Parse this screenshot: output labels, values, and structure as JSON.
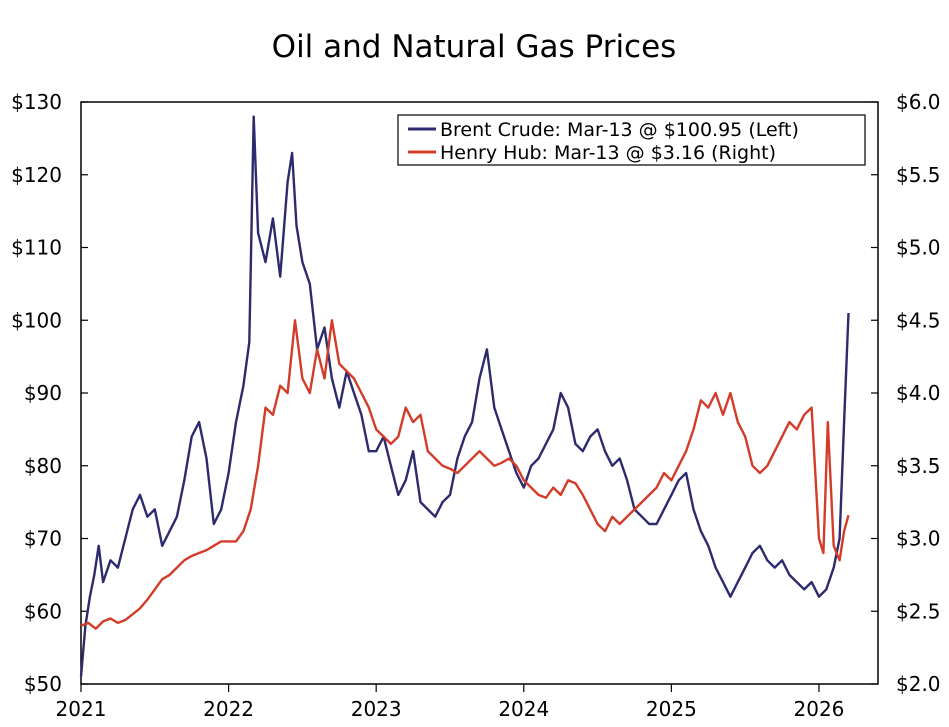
{
  "chart_data": {
    "type": "line",
    "title": "Oil and Natural Gas Prices",
    "xlabel": "",
    "ylabel_left": "",
    "ylabel_right": "",
    "x_ticks": [
      "2021",
      "2022",
      "2023",
      "2024",
      "2025",
      "2026"
    ],
    "x_range": [
      2021.0,
      2026.4
    ],
    "y_left": {
      "range": [
        50,
        130
      ],
      "ticks": [
        50,
        60,
        70,
        80,
        90,
        100,
        110,
        120,
        130
      ],
      "tick_labels": [
        "$50",
        "$60",
        "$70",
        "$80",
        "$90",
        "$100",
        "$110",
        "$120",
        "$130"
      ]
    },
    "y_right": {
      "range": [
        2.0,
        6.0
      ],
      "ticks": [
        2.0,
        2.5,
        3.0,
        3.5,
        4.0,
        4.5,
        5.0,
        5.5,
        6.0
      ],
      "tick_labels": [
        "$2.0",
        "$2.5",
        "$3.0",
        "$3.5",
        "$4.0",
        "$4.5",
        "$5.0",
        "$5.5",
        "$6.0"
      ]
    },
    "grid": false,
    "legend_position": "top-right",
    "series": [
      {
        "name": "Brent Crude",
        "legend_label": "Brent Crude: Mar-13 @ $100.95 (Left)",
        "axis": "left",
        "color": "#2e2a6e",
        "x": [
          2021.0,
          2021.03,
          2021.06,
          2021.09,
          2021.12,
          2021.15,
          2021.2,
          2021.25,
          2021.3,
          2021.35,
          2021.4,
          2021.45,
          2021.5,
          2021.55,
          2021.6,
          2021.65,
          2021.7,
          2021.75,
          2021.8,
          2021.85,
          2021.9,
          2021.95,
          2022.0,
          2022.05,
          2022.1,
          2022.14,
          2022.17,
          2022.2,
          2022.25,
          2022.3,
          2022.35,
          2022.4,
          2022.43,
          2022.46,
          2022.5,
          2022.55,
          2022.6,
          2022.65,
          2022.7,
          2022.75,
          2022.8,
          2022.85,
          2022.9,
          2022.95,
          2023.0,
          2023.05,
          2023.1,
          2023.15,
          2023.2,
          2023.25,
          2023.3,
          2023.35,
          2023.4,
          2023.45,
          2023.5,
          2023.55,
          2023.6,
          2023.65,
          2023.7,
          2023.75,
          2023.8,
          2023.85,
          2023.9,
          2023.95,
          2024.0,
          2024.05,
          2024.1,
          2024.15,
          2024.2,
          2024.25,
          2024.3,
          2024.35,
          2024.4,
          2024.45,
          2024.5,
          2024.55,
          2024.6,
          2024.65,
          2024.7,
          2024.75,
          2024.8,
          2024.85,
          2024.9,
          2024.95,
          2025.0,
          2025.05,
          2025.1,
          2025.15,
          2025.2,
          2025.25,
          2025.3,
          2025.35,
          2025.4,
          2025.45,
          2025.5,
          2025.55,
          2025.6,
          2025.65,
          2025.7,
          2025.75,
          2025.8,
          2025.85,
          2025.9,
          2025.95,
          2026.0,
          2026.05,
          2026.1,
          2026.14,
          2026.17,
          2026.2
        ],
        "y": [
          51,
          58,
          62,
          65,
          69,
          64,
          67,
          66,
          70,
          74,
          76,
          73,
          74,
          69,
          71,
          73,
          78,
          84,
          86,
          81,
          72,
          74,
          79,
          86,
          91,
          97,
          128,
          112,
          108,
          114,
          106,
          119,
          123,
          113,
          108,
          105,
          96,
          99,
          92,
          88,
          93,
          90,
          87,
          82,
          82,
          84,
          80,
          76,
          78,
          82,
          75,
          74,
          73,
          75,
          76,
          81,
          84,
          86,
          92,
          96,
          88,
          85,
          82,
          79,
          77,
          80,
          81,
          83,
          85,
          90,
          88,
          83,
          82,
          84,
          85,
          82,
          80,
          81,
          78,
          74,
          73,
          72,
          72,
          74,
          76,
          78,
          79,
          74,
          71,
          69,
          66,
          64,
          62,
          64,
          66,
          68,
          69,
          67,
          66,
          67,
          65,
          64,
          63,
          64,
          62,
          63,
          66,
          70,
          86,
          101
        ]
      },
      {
        "name": "Henry Hub",
        "legend_label": "Henry Hub: Mar-13 @ $3.16 (Right)",
        "axis": "right",
        "color": "#d23c28",
        "x": [
          2021.0,
          2021.05,
          2021.1,
          2021.15,
          2021.2,
          2021.25,
          2021.3,
          2021.35,
          2021.4,
          2021.45,
          2021.5,
          2021.55,
          2021.6,
          2021.65,
          2021.7,
          2021.75,
          2021.8,
          2021.85,
          2021.9,
          2021.95,
          2022.0,
          2022.05,
          2022.1,
          2022.15,
          2022.2,
          2022.25,
          2022.3,
          2022.35,
          2022.4,
          2022.45,
          2022.5,
          2022.55,
          2022.6,
          2022.65,
          2022.7,
          2022.75,
          2022.8,
          2022.85,
          2022.9,
          2022.95,
          2023.0,
          2023.05,
          2023.1,
          2023.15,
          2023.2,
          2023.25,
          2023.3,
          2023.35,
          2023.4,
          2023.45,
          2023.5,
          2023.55,
          2023.6,
          2023.65,
          2023.7,
          2023.75,
          2023.8,
          2023.85,
          2023.9,
          2023.95,
          2024.0,
          2024.05,
          2024.1,
          2024.15,
          2024.2,
          2024.25,
          2024.3,
          2024.35,
          2024.4,
          2024.45,
          2024.5,
          2024.55,
          2024.6,
          2024.65,
          2024.7,
          2024.75,
          2024.8,
          2024.85,
          2024.9,
          2024.95,
          2025.0,
          2025.05,
          2025.1,
          2025.15,
          2025.2,
          2025.25,
          2025.3,
          2025.35,
          2025.4,
          2025.45,
          2025.5,
          2025.55,
          2025.6,
          2025.65,
          2025.7,
          2025.75,
          2025.8,
          2025.85,
          2025.9,
          2025.95,
          2026.0,
          2026.03,
          2026.06,
          2026.1,
          2026.14,
          2026.17,
          2026.2
        ],
        "y": [
          2.4,
          2.42,
          2.38,
          2.43,
          2.45,
          2.42,
          2.44,
          2.48,
          2.52,
          2.58,
          2.65,
          2.72,
          2.75,
          2.8,
          2.85,
          2.88,
          2.9,
          2.92,
          2.95,
          2.98,
          2.98,
          2.98,
          3.05,
          3.2,
          3.5,
          3.9,
          3.85,
          4.05,
          4.0,
          4.5,
          4.1,
          4.0,
          4.3,
          4.1,
          4.5,
          4.2,
          4.15,
          4.1,
          4.0,
          3.9,
          3.75,
          3.7,
          3.65,
          3.7,
          3.9,
          3.8,
          3.85,
          3.6,
          3.55,
          3.5,
          3.48,
          3.45,
          3.5,
          3.55,
          3.6,
          3.55,
          3.5,
          3.52,
          3.55,
          3.5,
          3.4,
          3.35,
          3.3,
          3.28,
          3.35,
          3.3,
          3.4,
          3.38,
          3.3,
          3.2,
          3.1,
          3.05,
          3.15,
          3.1,
          3.15,
          3.2,
          3.25,
          3.3,
          3.35,
          3.45,
          3.4,
          3.5,
          3.6,
          3.75,
          3.95,
          3.9,
          4.0,
          3.85,
          4.0,
          3.8,
          3.7,
          3.5,
          3.45,
          3.5,
          3.6,
          3.7,
          3.8,
          3.75,
          3.85,
          3.9,
          3.0,
          2.9,
          3.8,
          2.95,
          2.85,
          3.05,
          3.16
        ]
      }
    ]
  }
}
